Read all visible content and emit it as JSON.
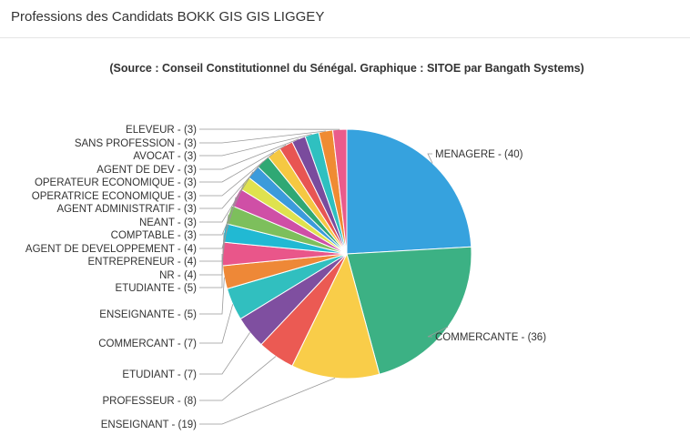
{
  "page": {
    "title": "Professions des Candidats BOKK GIS GIS LIGGEY"
  },
  "colors": {
    "text": "#333333",
    "connector": "#999999",
    "header_border": "#e5e5e5"
  },
  "chart_data": {
    "type": "pie",
    "title": "",
    "subtitle": "(Source : Conseil Constitutionnel du Sénégal. Graphique : SITOE par Bangath Systems)",
    "start_angle_deg": 0,
    "direction": "clockwise",
    "slices": [
      {
        "label": "MENAGERE - (40)",
        "value": 40,
        "color": "#36a2de"
      },
      {
        "label": "COMMERCANTE - (36)",
        "value": 36,
        "color": "#3cb184"
      },
      {
        "label": "ENSEIGNANT - (19)",
        "value": 19,
        "color": "#f9cd49"
      },
      {
        "label": "PROFESSEUR - (8)",
        "value": 8,
        "color": "#eb5a53"
      },
      {
        "label": "ETUDIANT - (7)",
        "value": 7,
        "color": "#7f4fa0"
      },
      {
        "label": "COMMERCANT - (7)",
        "value": 7,
        "color": "#31bfbf"
      },
      {
        "label": "ENSEIGNANTE - (5)",
        "value": 5,
        "color": "#ee8837"
      },
      {
        "label": "ETUDIANTE - (5)",
        "value": 5,
        "color": "#e9568a"
      },
      {
        "label": "NR - (4)",
        "value": 4,
        "color": "#21b9d3"
      },
      {
        "label": "ENTREPRENEUR - (4)",
        "value": 4,
        "color": "#7dbf5c"
      },
      {
        "label": "AGENT DE DEVELOPPEMENT - (4)",
        "value": 4,
        "color": "#cf4fa6"
      },
      {
        "label": "COMPTABLE - (3)",
        "value": 3,
        "color": "#dfe24e"
      },
      {
        "label": "NEANT - (3)",
        "value": 3,
        "color": "#3b9bdb"
      },
      {
        "label": "AGENT ADMINISTRATIF - (3)",
        "value": 3,
        "color": "#2fa874"
      },
      {
        "label": "OPERATRICE ECONOMIQUE - (3)",
        "value": 3,
        "color": "#f5c842"
      },
      {
        "label": "OPERATEUR ECONOMIQUE - (3)",
        "value": 3,
        "color": "#e85552"
      },
      {
        "label": "AGENT DE DEV - (3)",
        "value": 3,
        "color": "#7a4b9d"
      },
      {
        "label": "AVOCAT - (3)",
        "value": 3,
        "color": "#2fc0c0"
      },
      {
        "label": "SANS PROFESSION - (3)",
        "value": 3,
        "color": "#ef8b33"
      },
      {
        "label": "ELEVEUR - (3)",
        "value": 3,
        "color": "#ea5b8b"
      }
    ]
  }
}
